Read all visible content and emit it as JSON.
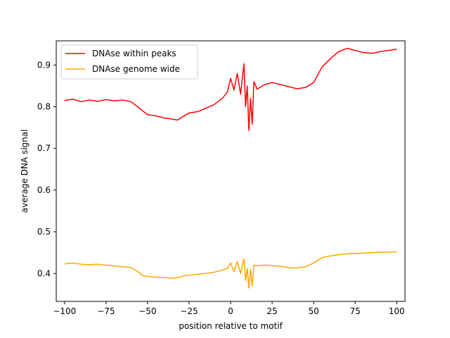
{
  "chart_data": {
    "type": "line",
    "xlabel": "position relative to motif",
    "ylabel": "average DNA signal",
    "xlim": [
      -105,
      105
    ],
    "ylim": [
      0.333,
      0.958
    ],
    "xticks": [
      -100,
      -75,
      -50,
      -25,
      0,
      25,
      50,
      75,
      100
    ],
    "xtick_labels": [
      "−100",
      "−75",
      "−50",
      "−25",
      "0",
      "25",
      "50",
      "75",
      "100"
    ],
    "yticks": [
      0.4,
      0.5,
      0.6,
      0.7,
      0.8,
      0.9
    ],
    "ytick_labels": [
      "0.4",
      "0.5",
      "0.6",
      "0.7",
      "0.8",
      "0.9"
    ],
    "grid": false,
    "legend_position": "top-left",
    "x": [
      -100,
      -95,
      -90,
      -85,
      -80,
      -75,
      -70,
      -65,
      -60,
      -56,
      -53,
      -50,
      -45,
      -40,
      -35,
      -32,
      -28,
      -25,
      -20,
      -15,
      -10,
      -5,
      -2,
      0,
      2,
      4,
      6,
      8,
      9,
      10,
      11,
      12,
      13,
      14,
      16,
      20,
      25,
      30,
      35,
      40,
      45,
      50,
      55,
      60,
      65,
      70,
      75,
      80,
      85,
      90,
      95,
      100
    ],
    "series": [
      {
        "name": "DNAse within peaks",
        "color": "#ff0000",
        "values": [
          0.815,
          0.818,
          0.812,
          0.816,
          0.813,
          0.817,
          0.814,
          0.816,
          0.812,
          0.8,
          0.79,
          0.781,
          0.778,
          0.773,
          0.77,
          0.768,
          0.778,
          0.785,
          0.788,
          0.796,
          0.805,
          0.82,
          0.835,
          0.868,
          0.84,
          0.88,
          0.83,
          0.903,
          0.8,
          0.85,
          0.743,
          0.82,
          0.758,
          0.86,
          0.842,
          0.852,
          0.858,
          0.853,
          0.848,
          0.843,
          0.846,
          0.858,
          0.895,
          0.915,
          0.932,
          0.94,
          0.935,
          0.93,
          0.928,
          0.932,
          0.935,
          0.938
        ]
      },
      {
        "name": "DNAse genome wide",
        "color": "#ffa500",
        "values": [
          0.423,
          0.425,
          0.422,
          0.421,
          0.422,
          0.42,
          0.418,
          0.416,
          0.414,
          0.405,
          0.395,
          0.393,
          0.391,
          0.39,
          0.389,
          0.39,
          0.394,
          0.396,
          0.398,
          0.4,
          0.403,
          0.408,
          0.412,
          0.425,
          0.405,
          0.428,
          0.4,
          0.435,
          0.383,
          0.412,
          0.365,
          0.41,
          0.37,
          0.42,
          0.418,
          0.42,
          0.419,
          0.417,
          0.414,
          0.413,
          0.416,
          0.425,
          0.438,
          0.442,
          0.445,
          0.447,
          0.448,
          0.449,
          0.45,
          0.451,
          0.451,
          0.452
        ]
      }
    ]
  }
}
